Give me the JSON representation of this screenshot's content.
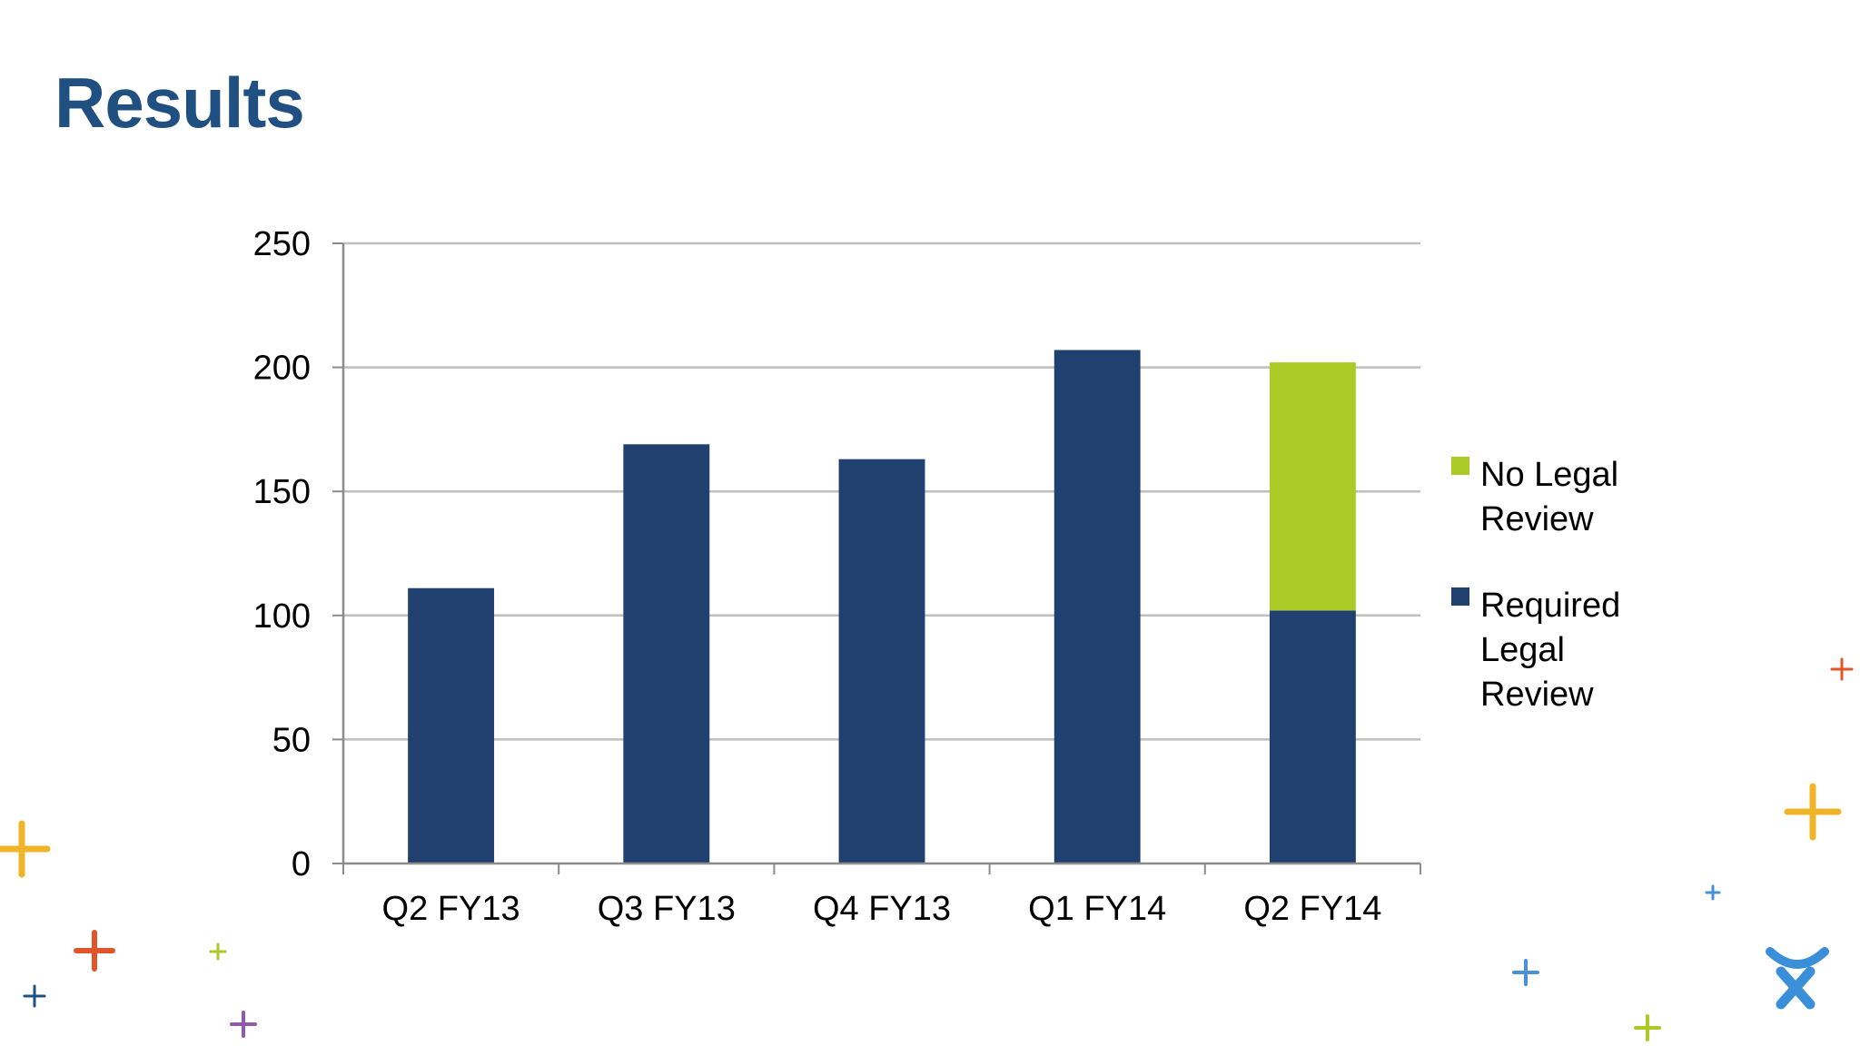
{
  "slide": {
    "title": "Results"
  },
  "colors": {
    "title": "#205081",
    "required": "#204170",
    "no_review": "#acca25",
    "grid": "#bfbfbf",
    "axis": "#8c8c8c"
  },
  "chart_data": {
    "type": "bar",
    "stacked": true,
    "categories": [
      "Q2 FY13",
      "Q3 FY13",
      "Q4 FY13",
      "Q1 FY14",
      "Q2 FY14"
    ],
    "series": [
      {
        "name": "Required Legal Review",
        "color": "#204170",
        "values": [
          111,
          169,
          163,
          207,
          102
        ]
      },
      {
        "name": "No Legal Review",
        "color": "#acca25",
        "values": [
          0,
          0,
          0,
          0,
          100
        ]
      }
    ],
    "legend_order": [
      "No Legal Review",
      "Required Legal Review"
    ],
    "legend_lines": {
      "No Legal Review": [
        "No Legal",
        "Review"
      ],
      "Required Legal Review": [
        "Required",
        "Legal",
        "Review"
      ]
    },
    "ylim": [
      0,
      250
    ],
    "yticks": [
      0,
      50,
      100,
      150,
      200,
      250
    ],
    "grid": true,
    "legend_position": "right",
    "title": "",
    "xlabel": "",
    "ylabel": ""
  },
  "decorations": [
    {
      "icon": "plus-icon",
      "color": "#f0b429"
    },
    {
      "icon": "plus-icon",
      "color": "#e0562a"
    },
    {
      "icon": "plus-icon",
      "color": "#acca25"
    },
    {
      "icon": "plus-icon",
      "color": "#205081"
    },
    {
      "icon": "plus-icon",
      "color": "#8d5ba8"
    },
    {
      "icon": "plus-icon",
      "color": "#e0562a"
    },
    {
      "icon": "plus-icon",
      "color": "#f0b429"
    },
    {
      "icon": "plus-icon",
      "color": "#4a90d9"
    },
    {
      "icon": "plus-icon",
      "color": "#4a90d9"
    },
    {
      "icon": "plus-icon",
      "color": "#acca25"
    }
  ],
  "logo": {
    "icon": "atlassian-logo-icon",
    "color": "#3b8fd9"
  }
}
